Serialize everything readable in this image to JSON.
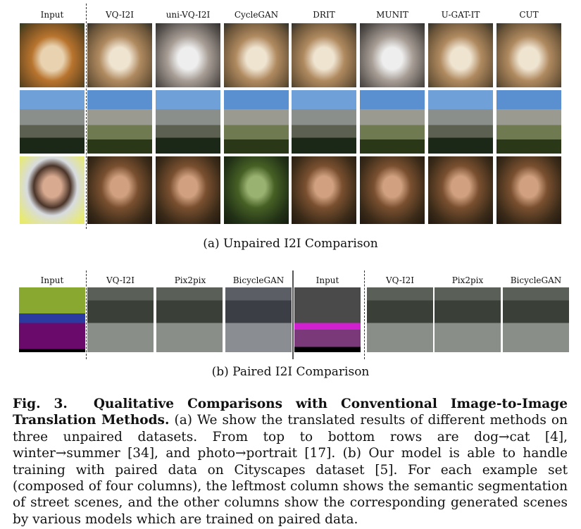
{
  "unpaired": {
    "columns": [
      "Input",
      "VQ-I2I",
      "uni-VQ-I2I",
      "CycleGAN",
      "DRIT",
      "MUNIT",
      "U-GAT-IT",
      "CUT"
    ],
    "caption": "(a) Unpaired I2I Comparison"
  },
  "paired": {
    "columns": [
      "Input",
      "VQ-I2I",
      "Pix2pix",
      "BicycleGAN",
      "Input",
      "VQ-I2I",
      "Pix2pix",
      "BicycleGAN"
    ],
    "caption": "(b) Paired I2I Comparison"
  },
  "figure_caption": {
    "label": "Fig. 3.",
    "title": "Qualitative Comparisons with Conventional Image-to-Image Translation Methods.",
    "body": "(a) We show the translated results of different methods on three unpaired datasets. From top to bottom rows are dog→cat [4], winter→summer [34], and photo→portrait [17]. (b) Our model is able to handle training with paired data on Cityscapes dataset [5]. For each example set (composed of four columns), the leftmost column shows the semantic segmentation of street scenes, and the other columns show the corresponding generated scenes by various models which are trained on paired data."
  }
}
